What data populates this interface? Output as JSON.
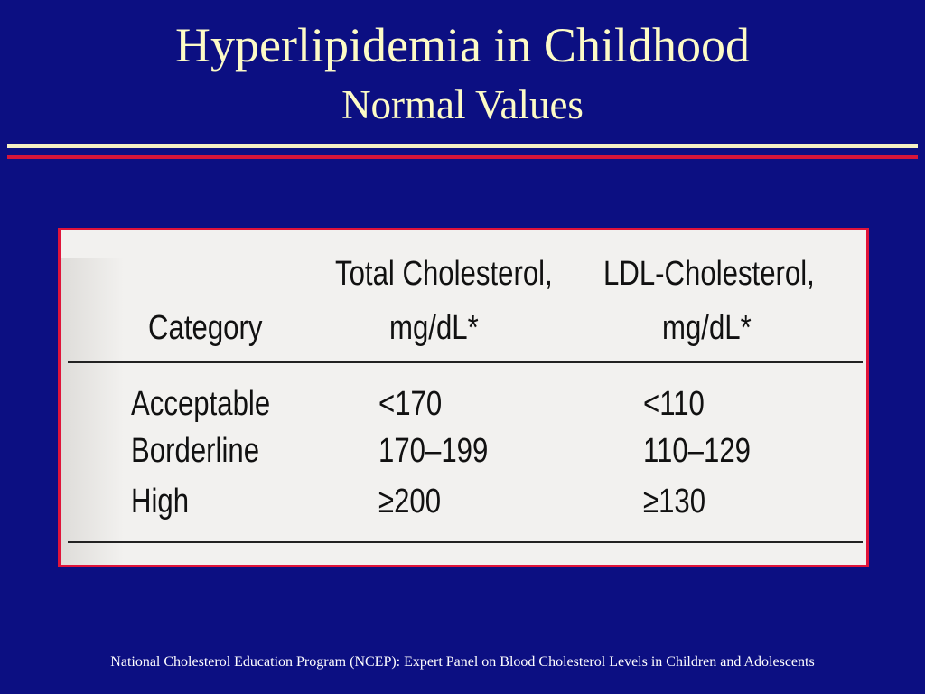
{
  "slide": {
    "title": "Hyperlipidemia in Childhood",
    "subtitle": "Normal Values",
    "footer": "National Cholesterol Education Program (NCEP): Expert Panel on Blood Cholesterol Levels in Children and Adolescents"
  },
  "table": {
    "headers": {
      "category": "Category",
      "total_line1": "Total Cholesterol,",
      "total_line2": "mg/dL*",
      "ldl_line1": "LDL-Cholesterol,",
      "ldl_line2": "mg/dL*"
    },
    "rows": [
      {
        "category": "Acceptable",
        "total": "<170",
        "ldl": "<110"
      },
      {
        "category": "Borderline",
        "total": "170–199",
        "ldl": "110–129"
      },
      {
        "category": "High",
        "total": "≥200",
        "ldl": "≥130"
      }
    ]
  },
  "colors": {
    "background": "#0c0f82",
    "title_text": "#fdfbc6",
    "rule_cream": "#f5f0c4",
    "rule_red": "#d5153a",
    "table_border": "#e0143a",
    "table_bg": "#f2f1ef"
  }
}
